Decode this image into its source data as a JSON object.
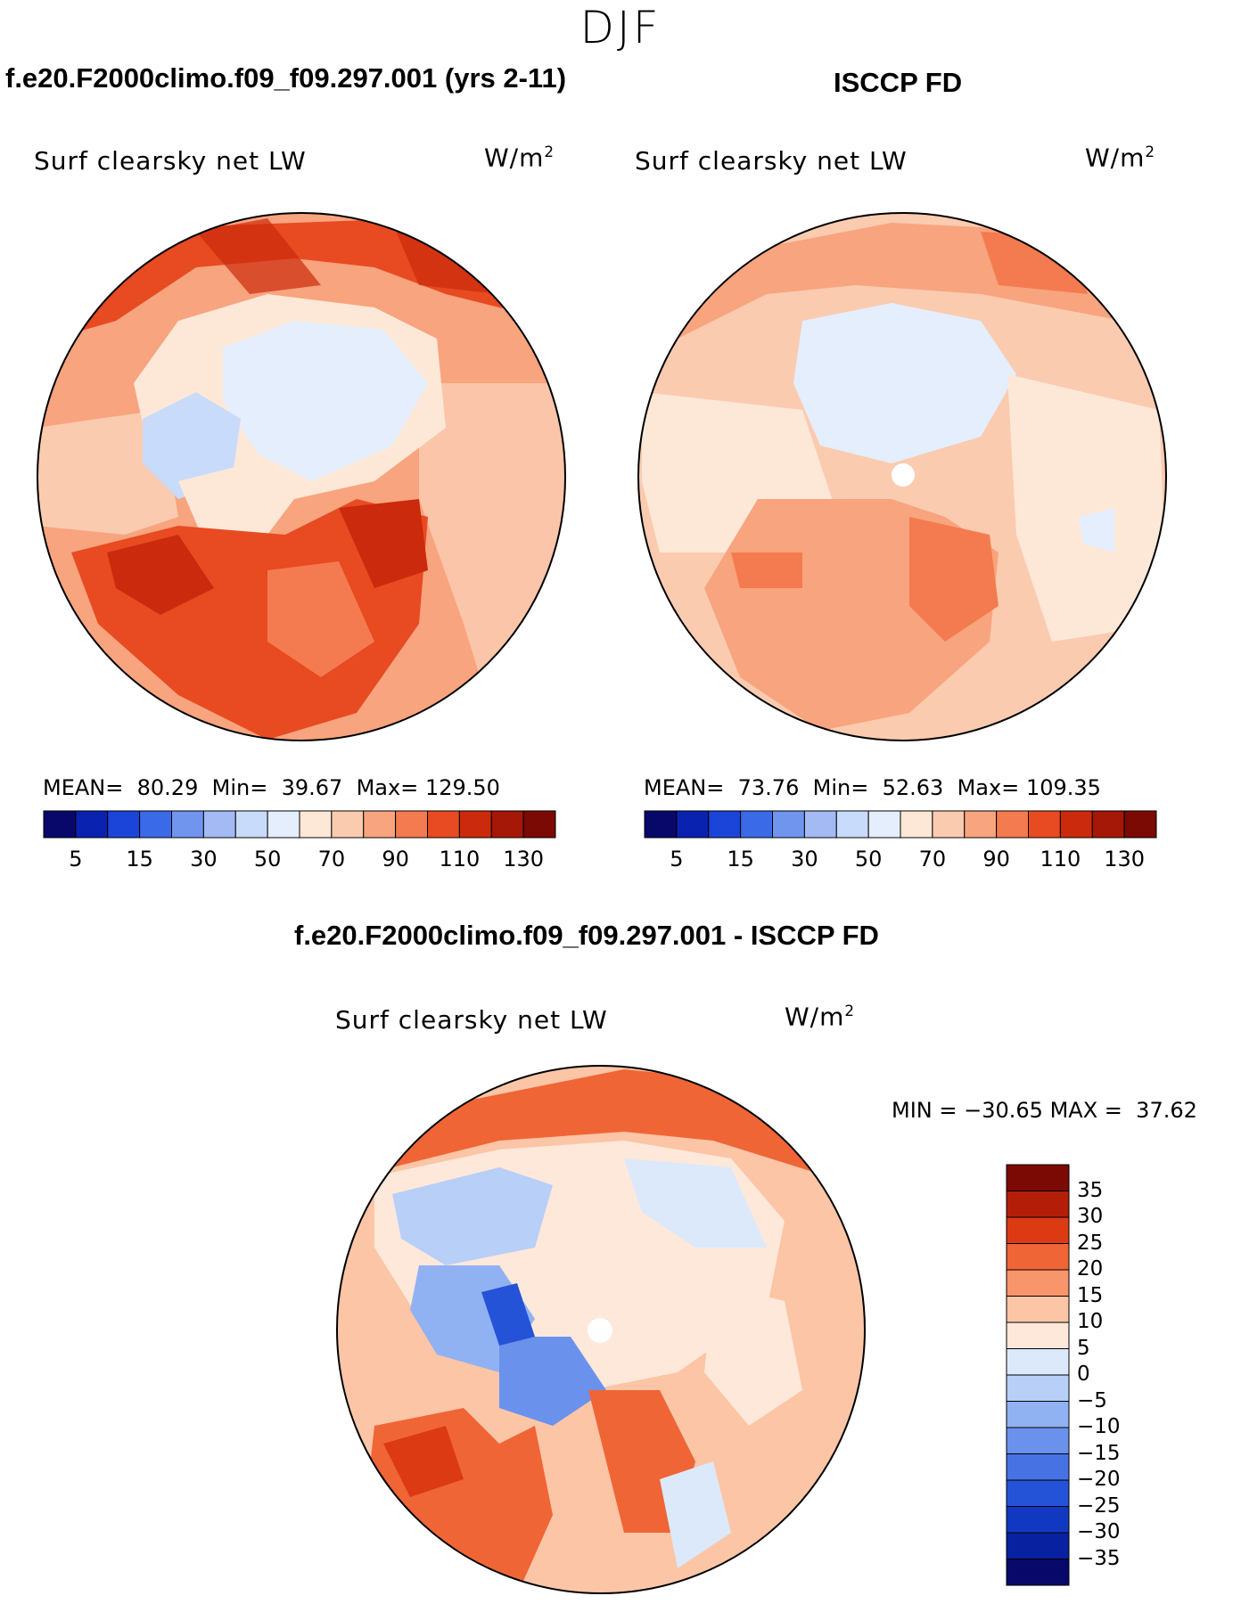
{
  "season": "DJF",
  "variable": "Surf clearsky net LW",
  "units": "W/m",
  "units_exponent": "2",
  "panels": [
    {
      "title": "f.e20.F2000climo.f09_f09.297.001 (yrs 2-11)",
      "mean_label": "MEAN=",
      "mean": "80.29",
      "min_label": "Min=",
      "min": "39.67",
      "max_label": "Max=",
      "max": "129.50"
    },
    {
      "title": "ISCCP FD",
      "mean_label": "MEAN=",
      "mean": "73.76",
      "min_label": "Min=",
      "min": "52.63",
      "max_label": "Max=",
      "max": "109.35"
    }
  ],
  "difference": {
    "title": "f.e20.F2000climo.f09_f09.297.001 - ISCCP FD",
    "min_label": "MIN =",
    "min": "−30.65",
    "max_label": "MAX =",
    "max": "37.62"
  },
  "colorbar_main": {
    "colors": [
      "#08086b",
      "#0a22b0",
      "#1a45d8",
      "#3b6ae8",
      "#6f95ef",
      "#a3baf5",
      "#c9dbfa",
      "#e4eefc",
      "#fde8d8",
      "#fbcbb0",
      "#f8a47e",
      "#f47b4f",
      "#e84a22",
      "#cc2a0c",
      "#a51706",
      "#7a0a03"
    ],
    "tick_labels": [
      "5",
      "15",
      "30",
      "50",
      "70",
      "90",
      "110",
      "130"
    ]
  },
  "colorbar_diff": {
    "colors": [
      "#7a0a03",
      "#b41e08",
      "#dc3a12",
      "#f06535",
      "#f8956a",
      "#fbc5a6",
      "#fde8da",
      "#dbe9fb",
      "#b8cff8",
      "#91b2f2",
      "#6a92ec",
      "#4672e4",
      "#2553d8",
      "#1138c0",
      "#0821a0",
      "#08086b"
    ],
    "tick_labels": [
      "35",
      "30",
      "25",
      "20",
      "15",
      "10",
      "5",
      "0",
      "−5",
      "−10",
      "−15",
      "−20",
      "−25",
      "−30",
      "−35"
    ]
  }
}
